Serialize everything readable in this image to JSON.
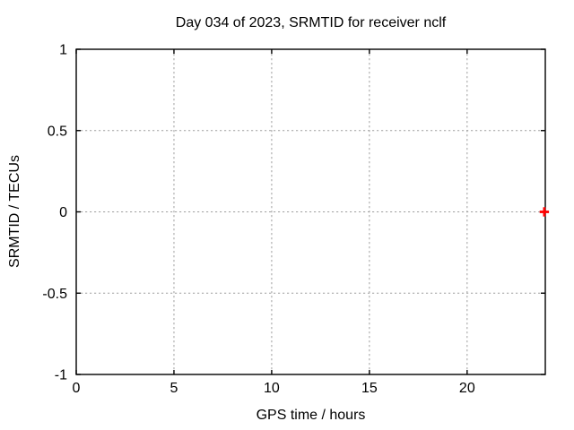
{
  "figure": {
    "background_color": "#ffffff",
    "text_color": "#000000",
    "border_color": "#000000",
    "grid_color": "#a0a0a0",
    "marker_color": "#ff0000"
  },
  "chart_data": {
    "type": "scatter",
    "title": "Day 034 of 2023, SRMTID for receiver nclf",
    "xlabel": "GPS time / hours",
    "ylabel": "SRMTID / TECUs",
    "xlim": [
      0,
      24
    ],
    "ylim": [
      -1,
      1
    ],
    "xticks": [
      {
        "value": 0,
        "label": "0"
      },
      {
        "value": 5,
        "label": "5"
      },
      {
        "value": 10,
        "label": "10"
      },
      {
        "value": 15,
        "label": "15"
      },
      {
        "value": 20,
        "label": "20"
      }
    ],
    "yticks": [
      {
        "value": -1,
        "label": "-1"
      },
      {
        "value": -0.5,
        "label": "-0.5"
      },
      {
        "value": 0,
        "label": "0"
      },
      {
        "value": 0.5,
        "label": "0.5"
      },
      {
        "value": 1,
        "label": "1"
      }
    ],
    "grid": "dotted",
    "legend": "none",
    "series": [
      {
        "marker": "plus",
        "color": "#ff0000",
        "points": [
          {
            "x": 23.95,
            "y": 0
          }
        ]
      }
    ]
  }
}
